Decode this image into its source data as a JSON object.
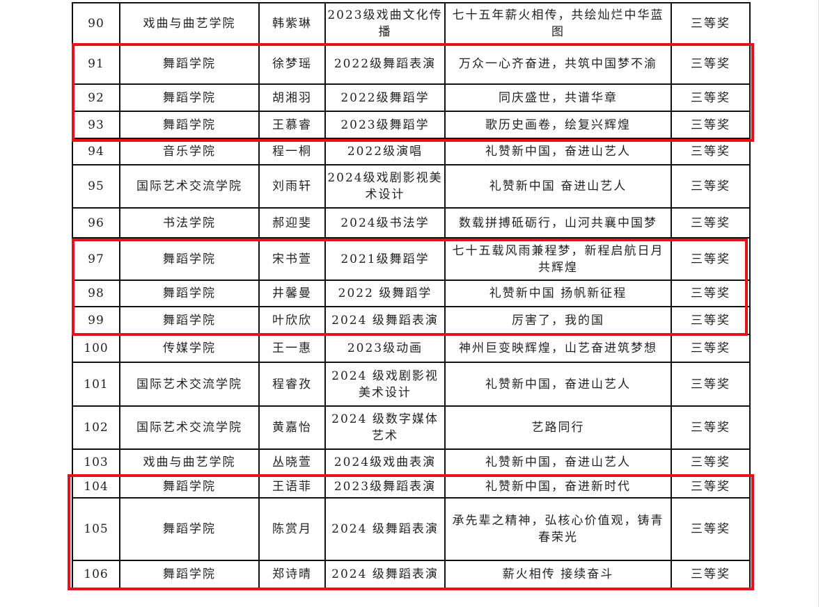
{
  "rows": [
    {
      "no": "90",
      "college": "戏曲与曲艺学院",
      "name": "韩紫琳",
      "class": "2023级戏曲文化传播",
      "work": "七十五年薪火相传，共绘灿烂中华蓝图",
      "award": "三等奖"
    },
    {
      "no": "91",
      "college": "舞蹈学院",
      "name": "徐梦瑶",
      "class": "2022级舞蹈表演",
      "work": "万众一心齐奋进，共筑中国梦不渝",
      "award": "三等奖"
    },
    {
      "no": "92",
      "college": "舞蹈学院",
      "name": "胡湘羽",
      "class": "2022级舞蹈学",
      "work": "同庆盛世，共谱华章",
      "award": "三等奖"
    },
    {
      "no": "93",
      "college": "舞蹈学院",
      "name": "王慕睿",
      "class": "2023级舞蹈学",
      "work": "歌历史画卷，绘复兴辉煌",
      "award": "三等奖"
    },
    {
      "no": "94",
      "college": "音乐学院",
      "name": "程一桐",
      "class": "2022级演唱",
      "work": "礼赞新中国，奋进山艺人",
      "award": "三等奖"
    },
    {
      "no": "95",
      "college": "国际艺术交流学院",
      "name": "刘雨轩",
      "class": "2024级戏剧影视美术设计",
      "work": "礼赞新中国 奋进山艺人",
      "award": "三等奖"
    },
    {
      "no": "96",
      "college": "书法学院",
      "name": "郝迎斐",
      "class": "2024级书法学",
      "work": "数载拼搏砥砺行，山河共襄中国梦",
      "award": "三等奖"
    },
    {
      "no": "97",
      "college": "舞蹈学院",
      "name": "宋书萱",
      "class": "2021级舞蹈学",
      "work": "七十五载风雨兼程梦，新程启航日月共辉煌",
      "award": "三等奖"
    },
    {
      "no": "98",
      "college": "舞蹈学院",
      "name": "井馨曼",
      "class": "2022 级舞蹈学",
      "work": "礼赞新中国 扬帆新征程",
      "award": "三等奖"
    },
    {
      "no": "99",
      "college": "舞蹈学院",
      "name": "叶欣欣",
      "class": "2024 级舞蹈表演",
      "work": "厉害了，我的国",
      "award": "三等奖"
    },
    {
      "no": "100",
      "college": "传媒学院",
      "name": "王一惠",
      "class": "2023级动画",
      "work": "神州巨变映辉煌，山艺奋进筑梦想",
      "award": "三等奖"
    },
    {
      "no": "101",
      "college": "国际艺术交流学院",
      "name": "程睿孜",
      "class": "2024 级戏剧影视美术设计",
      "work": "礼赞新中国，奋进山艺人",
      "award": "三等奖"
    },
    {
      "no": "102",
      "college": "国际艺术交流学院",
      "name": "黄嘉怡",
      "class": "2024 级数字媒体艺术",
      "work": "艺路同行",
      "award": "三等奖"
    },
    {
      "no": "103",
      "college": "戏曲与曲艺学院",
      "name": "丛晓萱",
      "class": "2024级戏曲表演",
      "work": "礼赞新中国，奋进山艺人",
      "award": "三等奖"
    },
    {
      "no": "104",
      "college": "舞蹈学院",
      "name": "王语菲",
      "class": "2023级舞蹈表演",
      "work": "礼赞新中国，奋进新时代",
      "award": "三等奖"
    },
    {
      "no": "105",
      "college": "舞蹈学院",
      "name": "陈赏月",
      "class": "2024 级舞蹈表演",
      "work": "承先辈之精神，弘核心价值观，铸青春荣光",
      "award": "三等奖"
    },
    {
      "no": "106",
      "college": "舞蹈学院",
      "name": "郑诗晴",
      "class": "2024 级舞蹈表演",
      "work": "薪火相传 接续奋斗",
      "award": "三等奖"
    }
  ],
  "highlight_color": "#e8101a"
}
